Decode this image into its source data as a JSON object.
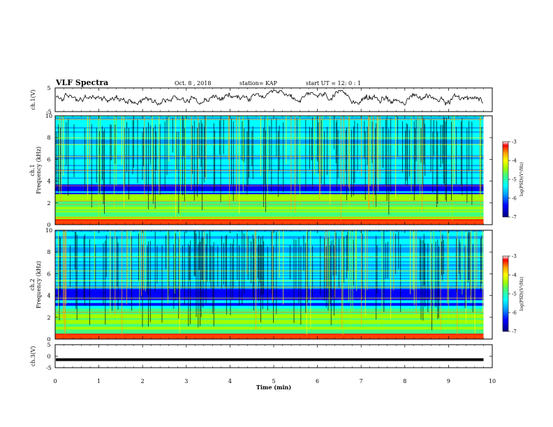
{
  "header": {
    "title": "VLF Spectra",
    "date": "Oct. 8 , 2018",
    "station": "station= KAP",
    "start": "start UT = 12: 0 : 1"
  },
  "chart_data": [
    {
      "type": "line",
      "panel": "ch1-waveform",
      "ylabel": "ch.1(V)",
      "ylim": [
        -5,
        5
      ],
      "yticks": [
        "5",
        "-5"
      ],
      "xlim": [
        0,
        10
      ],
      "color": "#000000",
      "x_end": 9.8,
      "description_values": "noisy waveform oscillating roughly between -1 and +3 V"
    },
    {
      "type": "heatmap",
      "panel": "ch1-spectrogram",
      "ylabel_top": "ch.1",
      "ylabel": "Frequency (kHz)",
      "ylim": [
        0,
        10
      ],
      "yticks": [
        "0",
        "2",
        "4",
        "6",
        "8",
        "10"
      ],
      "xlim": [
        0,
        10
      ],
      "x_end": 9.8,
      "colorbar": {
        "label": "log(PSD)(V²/Hz)",
        "range": [
          -7,
          -3
        ],
        "ticks": [
          "-3",
          "-4",
          "-5",
          "-6",
          "-7"
        ]
      }
    },
    {
      "type": "heatmap",
      "panel": "ch2-spectrogram",
      "ylabel_top": "ch.2",
      "ylabel": "Frequency (kHz)",
      "ylim": [
        0,
        10
      ],
      "yticks": [
        "0",
        "2",
        "4",
        "6",
        "8",
        "10"
      ],
      "xlim": [
        0,
        10
      ],
      "x_end": 9.8,
      "colorbar": {
        "label": "log(PSD)(V²/Hz)",
        "range": [
          -7,
          -3
        ],
        "ticks": [
          "-3",
          "-4",
          "-5",
          "-6",
          "-7"
        ]
      }
    },
    {
      "type": "line",
      "panel": "ch3-waveform",
      "ylabel": "ch.3(V)",
      "ylim": [
        -5,
        5
      ],
      "yticks": [
        "5",
        "0",
        "-5"
      ],
      "xlim": [
        0,
        10
      ],
      "constant_value": -1.5,
      "x_end": 9.8
    }
  ],
  "xaxis": {
    "label": "Time (min)",
    "ticks": [
      "0",
      "1",
      "2",
      "3",
      "4",
      "5",
      "6",
      "7",
      "8",
      "9",
      "10"
    ]
  },
  "colors": {
    "scale": [
      "#000080",
      "#0000ff",
      "#00a0ff",
      "#00ffff",
      "#40ff80",
      "#a0ff00",
      "#ffff00",
      "#ffa000",
      "#ff0000",
      "#ffffff"
    ]
  }
}
